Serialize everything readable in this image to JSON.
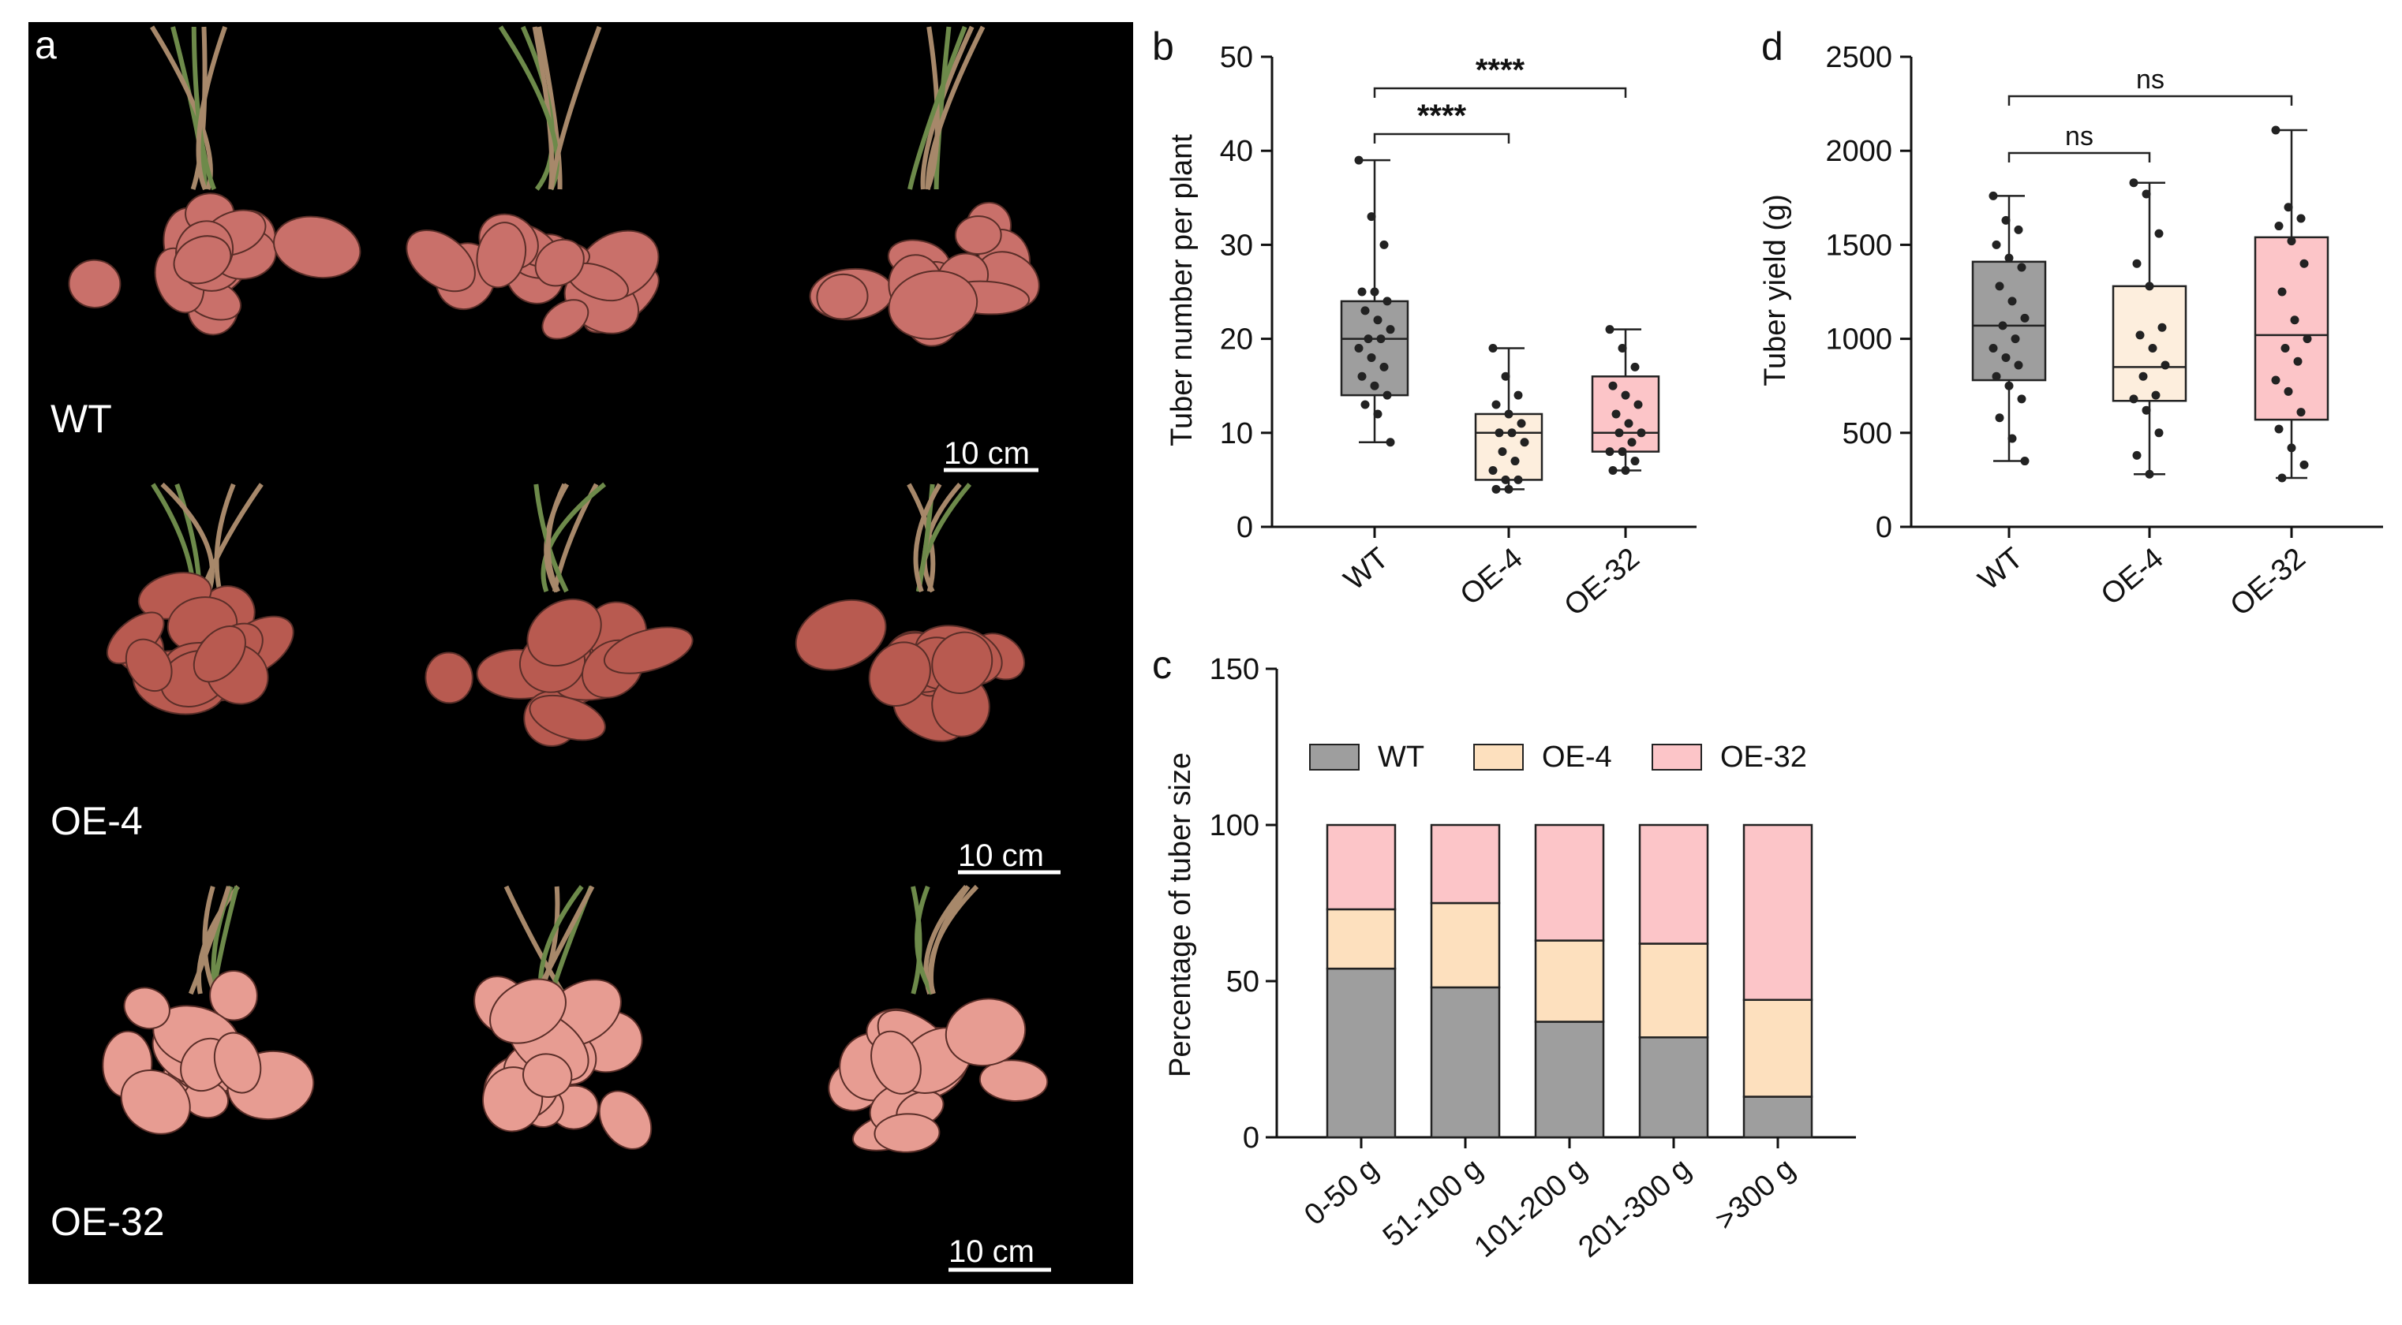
{
  "colors": {
    "wt": "#9e9e9e",
    "oe4_box": "#fdeedd",
    "oe4_bar": "#fde0be",
    "oe32": "#fcc5c8",
    "photo_bg": "#000000",
    "tuber_wt": "#c9706a",
    "tuber_oe4": "#b85a50",
    "tuber_oe32": "#e79c92"
  },
  "panel_a": {
    "letter": "a",
    "rows": [
      {
        "label": "WT",
        "scale": "10 cm"
      },
      {
        "label": "OE-4",
        "scale": "10 cm"
      },
      {
        "label": "OE-32",
        "scale": "10 cm"
      }
    ]
  },
  "panel_b": {
    "letter": "b",
    "ylabel": "Tuber number per plant",
    "comparisons": [
      {
        "between": [
          "WT",
          "OE-4"
        ],
        "label": "****"
      },
      {
        "between": [
          "WT",
          "OE-32"
        ],
        "label": "****"
      }
    ]
  },
  "panel_c": {
    "letter": "c",
    "ylabel": "Percentage of tuber size"
  },
  "panel_d": {
    "letter": "d",
    "ylabel": "Tuber yield (g)",
    "comparisons": [
      {
        "between": [
          "WT",
          "OE-4"
        ],
        "label": "ns"
      },
      {
        "between": [
          "WT",
          "OE-32"
        ],
        "label": "ns"
      }
    ]
  },
  "chart_data": [
    {
      "panel": "b",
      "type": "box",
      "ylabel": "Tuber number per plant",
      "ylim": [
        0,
        50
      ],
      "yticks": [
        0,
        10,
        20,
        30,
        40,
        50
      ],
      "categories": [
        "WT",
        "OE-4",
        "OE-32"
      ],
      "boxes": [
        {
          "min": 9,
          "q1": 14,
          "median": 20,
          "q3": 24,
          "max": 39
        },
        {
          "min": 4,
          "q1": 5,
          "median": 10,
          "q3": 12,
          "max": 19
        },
        {
          "min": 6,
          "q1": 8,
          "median": 10,
          "q3": 16,
          "max": 21
        }
      ],
      "points": [
        [
          39,
          33,
          30,
          25,
          25,
          24,
          23,
          22,
          21,
          20,
          20,
          19,
          18,
          17,
          16,
          15,
          14,
          13,
          12,
          9
        ],
        [
          19,
          16,
          14,
          13,
          12,
          11,
          10,
          10,
          9,
          8,
          7,
          6,
          5,
          5,
          4,
          4
        ],
        [
          21,
          19,
          17,
          15,
          14,
          13,
          12,
          11,
          10,
          10,
          9,
          8,
          8,
          7,
          6,
          6
        ]
      ]
    },
    {
      "panel": "d",
      "type": "box",
      "ylabel": "Tuber yield (g)",
      "ylim": [
        0,
        2500
      ],
      "yticks": [
        0,
        500,
        1000,
        1500,
        2000,
        2500
      ],
      "categories": [
        "WT",
        "OE-4",
        "OE-32"
      ],
      "boxes": [
        {
          "min": 350,
          "q1": 780,
          "median": 1070,
          "q3": 1410,
          "max": 1760
        },
        {
          "min": 280,
          "q1": 670,
          "median": 850,
          "q3": 1280,
          "max": 1830
        },
        {
          "min": 260,
          "q1": 570,
          "median": 1020,
          "q3": 1540,
          "max": 2110
        }
      ],
      "points": [
        [
          1760,
          1630,
          1580,
          1500,
          1430,
          1380,
          1280,
          1200,
          1110,
          1070,
          1000,
          950,
          900,
          860,
          800,
          750,
          680,
          580,
          470,
          350
        ],
        [
          1830,
          1770,
          1560,
          1400,
          1280,
          1060,
          1020,
          950,
          860,
          800,
          700,
          680,
          620,
          500,
          380,
          280
        ],
        [
          2110,
          1700,
          1640,
          1600,
          1520,
          1400,
          1250,
          1100,
          1000,
          950,
          880,
          780,
          720,
          610,
          520,
          420,
          330,
          260
        ]
      ]
    },
    {
      "panel": "c",
      "type": "bar",
      "stacked": true,
      "ylabel": "Percentage of tuber size",
      "ylim": [
        0,
        150
      ],
      "yticks": [
        0,
        50,
        100,
        150
      ],
      "categories": [
        "0-50 g",
        "51-100 g",
        "101-200 g",
        "201-300 g",
        ">300 g"
      ],
      "series": [
        {
          "name": "WT",
          "values": [
            54,
            48,
            37,
            32,
            13
          ]
        },
        {
          "name": "OE-4",
          "values": [
            19,
            27,
            26,
            30,
            31
          ]
        },
        {
          "name": "OE-32",
          "values": [
            27,
            25,
            37,
            38,
            56
          ]
        }
      ],
      "legend": "top"
    }
  ]
}
